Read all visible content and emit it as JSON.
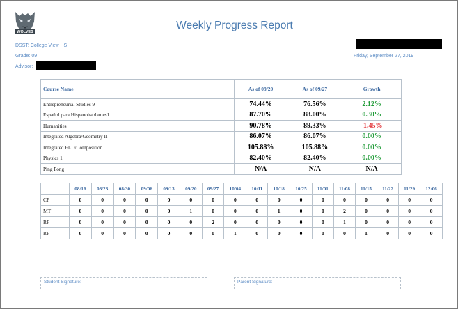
{
  "header": {
    "title": "Weekly Progress Report",
    "logo_text": "WOLVES",
    "school": "DSST: College View HS",
    "grade": "Grade: 09",
    "advisor": "Advisor:",
    "date": "Friday, September 27, 2019"
  },
  "courses_table": {
    "headers": [
      "Course Name",
      "As of 09/20",
      "As of 09/27",
      "Growth"
    ],
    "rows": [
      {
        "name": "Entrepreneurial Studies 9",
        "prev": "74.44%",
        "curr": "76.56%",
        "growth": "2.12%",
        "trend": "pos"
      },
      {
        "name": "Español para Hispanohablantes1",
        "prev": "87.70%",
        "curr": "88.00%",
        "growth": "0.30%",
        "trend": "pos"
      },
      {
        "name": "Humanities",
        "prev": "90.78%",
        "curr": "89.33%",
        "growth": "-1.45%",
        "trend": "neg"
      },
      {
        "name": "Integrated Algebra/Geometry II",
        "prev": "86.07%",
        "curr": "86.07%",
        "growth": "0.00%",
        "trend": "pos"
      },
      {
        "name": "Integrated ELD/Composition",
        "prev": "105.88%",
        "curr": "105.88%",
        "growth": "0.00%",
        "trend": "pos"
      },
      {
        "name": "Physics 1",
        "prev": "82.40%",
        "curr": "82.40%",
        "growth": "0.00%",
        "trend": "pos"
      },
      {
        "name": "Ping Pong",
        "prev": "N/A",
        "curr": "N/A",
        "growth": "N/A",
        "trend": "na"
      }
    ]
  },
  "weekly_table": {
    "weeks": [
      "08/16",
      "08/23",
      "08/30",
      "09/06",
      "09/13",
      "09/20",
      "09/27",
      "10/04",
      "10/11",
      "10/18",
      "10/25",
      "11/01",
      "11/08",
      "11/15",
      "11/22",
      "11/29",
      "12/06"
    ],
    "rows": [
      {
        "label": "CP",
        "values": [
          "0",
          "0",
          "0",
          "0",
          "0",
          "0",
          "0",
          "0",
          "0",
          "0",
          "0",
          "0",
          "0",
          "0",
          "0",
          "0",
          "0"
        ]
      },
      {
        "label": "MT",
        "values": [
          "0",
          "0",
          "0",
          "0",
          "0",
          "1",
          "0",
          "0",
          "0",
          "1",
          "0",
          "0",
          "2",
          "0",
          "0",
          "0",
          "0"
        ]
      },
      {
        "label": "RF",
        "values": [
          "0",
          "0",
          "0",
          "0",
          "0",
          "0",
          "2",
          "0",
          "0",
          "0",
          "0",
          "0",
          "1",
          "0",
          "0",
          "0",
          "0"
        ]
      },
      {
        "label": "RP",
        "values": [
          "0",
          "0",
          "0",
          "0",
          "0",
          "0",
          "0",
          "1",
          "0",
          "0",
          "0",
          "0",
          "0",
          "1",
          "0",
          "0",
          "0"
        ]
      }
    ]
  },
  "signatures": {
    "student": "Student Signature:",
    "parent": "Parent Signature:"
  }
}
